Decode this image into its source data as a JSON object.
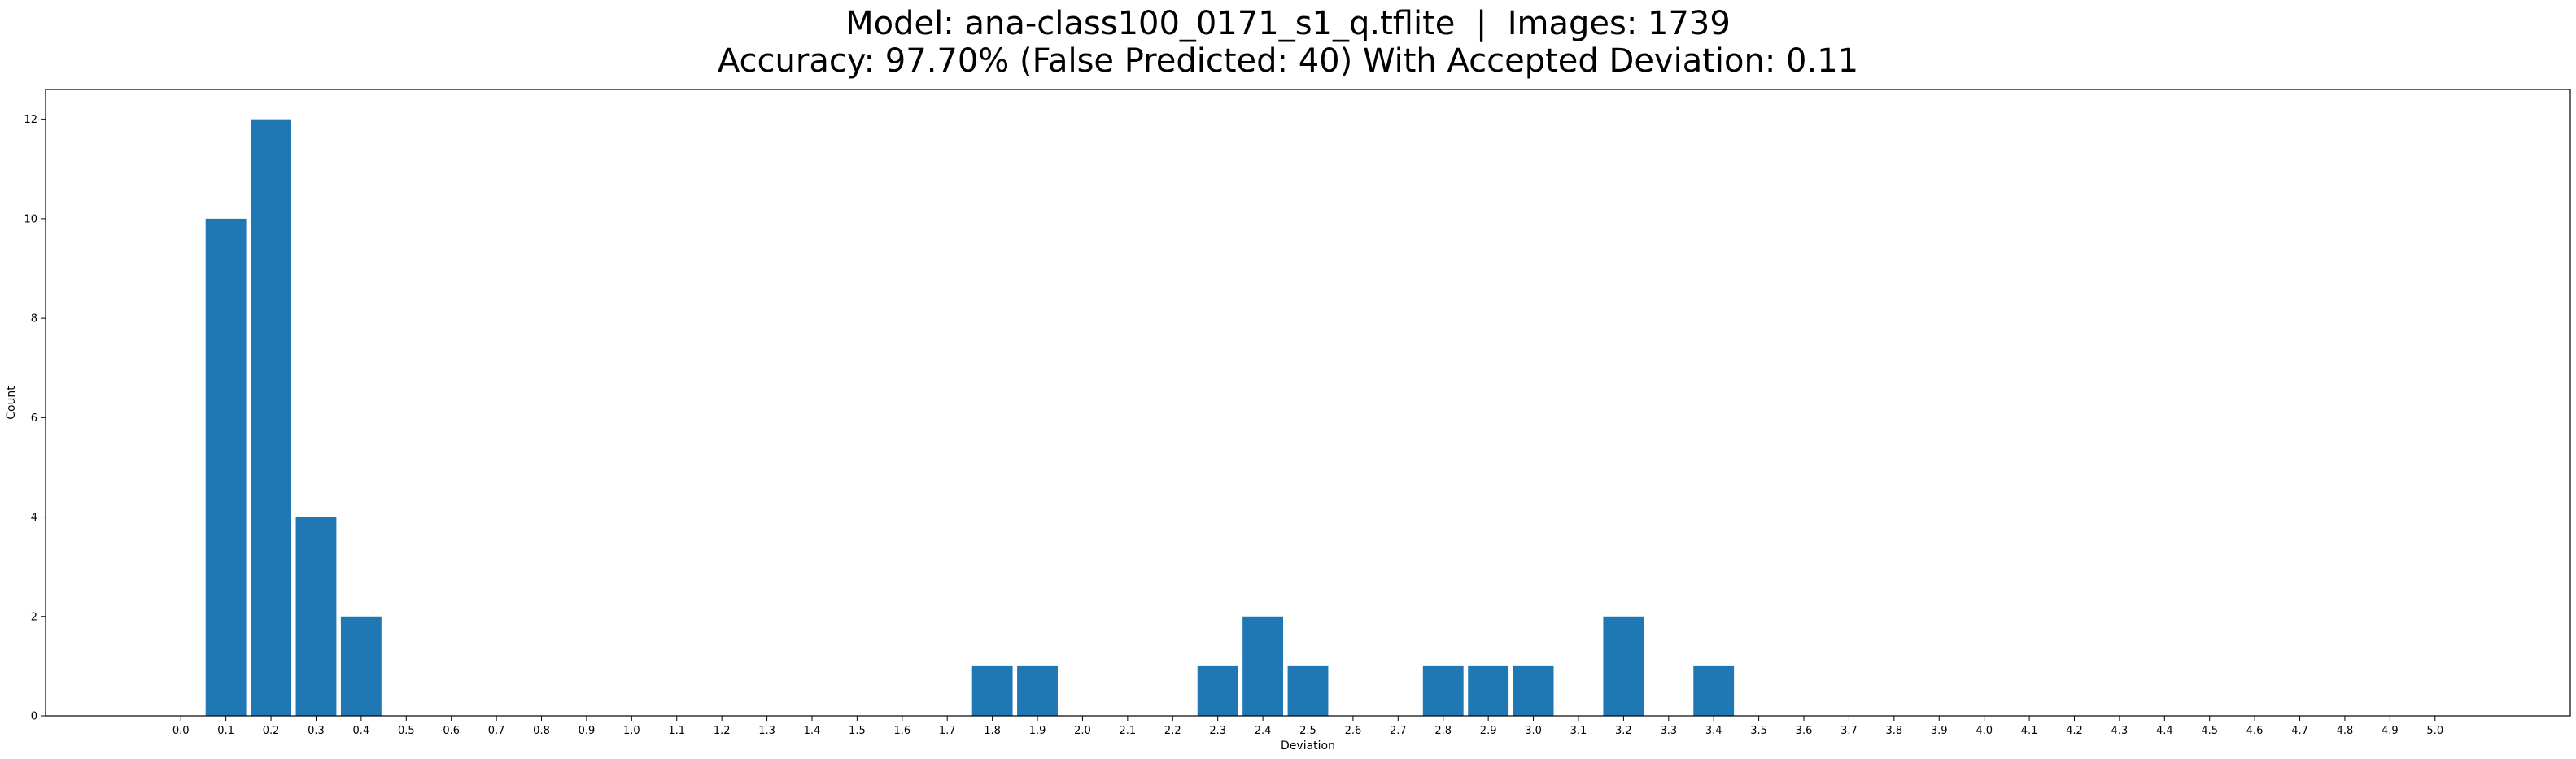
{
  "chart_data": {
    "type": "bar",
    "title_line1": "Model: ana-class100_0171_s1_q.tflite  |  Images: 1739",
    "title_line2": "Accuracy: 97.70% (False Predicted: 40) With Accepted Deviation: 0.11",
    "xlabel": "Deviation",
    "ylabel": "Count",
    "xlim": [
      -0.3,
      5.3
    ],
    "ylim": [
      0,
      12.6
    ],
    "x_ticks": [
      "0.0",
      "0.1",
      "0.2",
      "0.3",
      "0.4",
      "0.5",
      "0.6",
      "0.7",
      "0.8",
      "0.9",
      "1.0",
      "1.1",
      "1.2",
      "1.3",
      "1.4",
      "1.5",
      "1.6",
      "1.7",
      "1.8",
      "1.9",
      "2.0",
      "2.1",
      "2.2",
      "2.3",
      "2.4",
      "2.5",
      "2.6",
      "2.7",
      "2.8",
      "2.9",
      "3.0",
      "3.1",
      "3.2",
      "3.3",
      "3.4",
      "3.5",
      "3.6",
      "3.7",
      "3.8",
      "3.9",
      "4.0",
      "4.1",
      "4.2",
      "4.3",
      "4.4",
      "4.5",
      "4.6",
      "4.7",
      "4.8",
      "4.9",
      "5.0"
    ],
    "y_ticks": [
      "0",
      "2",
      "4",
      "6",
      "8",
      "10",
      "12"
    ],
    "categories": [
      "0.1",
      "0.2",
      "0.3",
      "0.4",
      "1.8",
      "1.9",
      "2.3",
      "2.4",
      "2.5",
      "2.8",
      "2.9",
      "3.0",
      "3.2",
      "3.4"
    ],
    "values": [
      10,
      12,
      4,
      2,
      1,
      1,
      1,
      2,
      1,
      1,
      1,
      1,
      2,
      1
    ],
    "bar_color": "#1f77b4",
    "grid": false
  }
}
